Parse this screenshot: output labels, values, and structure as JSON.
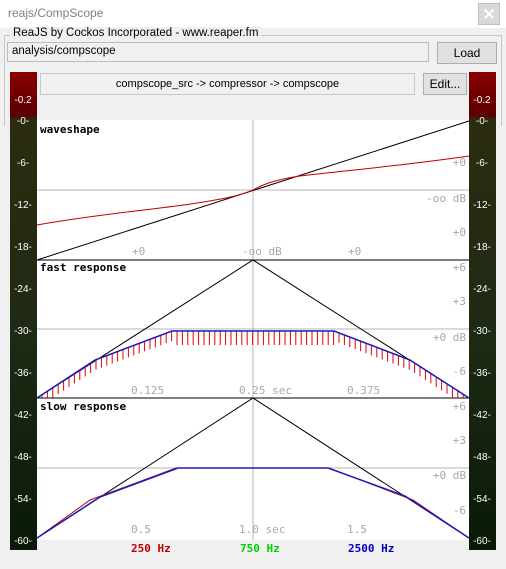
{
  "window": {
    "title": "reajs/CompScope"
  },
  "header": {
    "group_label": "ReaJS by Cockos Incorporated - www.reaper.fm",
    "path_value": "analysis/compscope",
    "load_label": "Load",
    "chain_label": "compscope_src -> compressor -> compscope",
    "edit_label": "Edit..."
  },
  "meters": {
    "left_labels": [
      "-0.2",
      "-0-",
      "-6-",
      "-12-",
      "-18-",
      "-24-",
      "-30-",
      "-36-",
      "-42-",
      "-48-",
      "-54-",
      "-60-"
    ],
    "right_labels": [
      "-0.2",
      "-0-",
      "-6-",
      "-12-",
      "-18-",
      "-24-",
      "-30-",
      "-36-",
      "-42-",
      "-48-",
      "-54-",
      "-60-"
    ]
  },
  "panels": {
    "waveshape": {
      "title": "waveshape",
      "bottom_labels": [
        "+0",
        "-oo dB",
        "+0"
      ],
      "right_labels": [
        "+0",
        "-oo dB",
        "+0"
      ]
    },
    "fast": {
      "title": "fast response",
      "bottom_labels": [
        "0.125",
        "0.25 sec",
        "0.375"
      ],
      "right_labels": [
        "+6",
        "+3",
        "+0 dB",
        "-3",
        "-6"
      ]
    },
    "slow": {
      "title": "slow response",
      "bottom_labels": [
        "0.5",
        "1.0 sec",
        "1.5"
      ],
      "right_labels": [
        "+6",
        "+3",
        "+0 dB",
        "-3",
        "-6"
      ]
    }
  },
  "legend": {
    "items": [
      "250 Hz",
      "750 Hz",
      "2500 Hz"
    ]
  },
  "colors": {
    "low": "#c00000",
    "mid": "#00d000",
    "high": "#0000c0",
    "meter_top": "#8b0000"
  }
}
